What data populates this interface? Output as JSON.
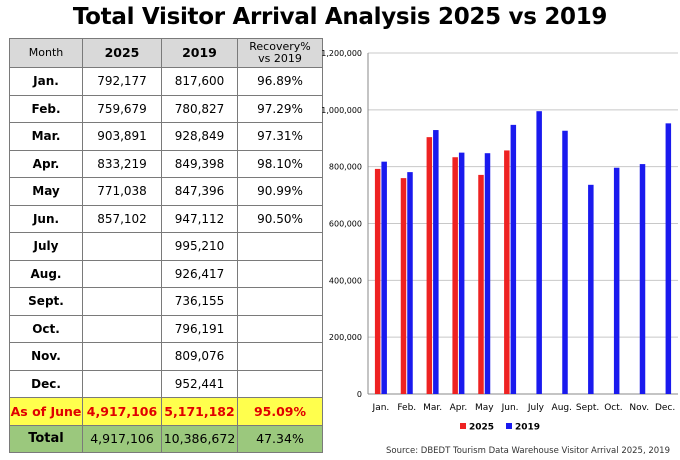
{
  "title": "Total Visitor Arrival Analysis 2025 vs 2019",
  "table": {
    "headers": [
      "Month",
      "2025",
      "2019",
      "Recovery%\nvs 2019"
    ],
    "rows": [
      [
        "Jan.",
        "792,177",
        "817,600",
        "96.89%"
      ],
      [
        "Feb.",
        "759,679",
        "780,827",
        "97.29%"
      ],
      [
        "Mar.",
        "903,891",
        "928,849",
        "97.31%"
      ],
      [
        "Apr.",
        "833,219",
        "849,398",
        "98.10%"
      ],
      [
        "May",
        "771,038",
        "847,396",
        "90.99%"
      ],
      [
        "Jun.",
        "857,102",
        "947,112",
        "90.50%"
      ],
      [
        "July",
        "",
        "995,210",
        ""
      ],
      [
        "Aug.",
        "",
        "926,417",
        ""
      ],
      [
        "Sept.",
        "",
        "736,155",
        ""
      ],
      [
        "Oct.",
        "",
        "796,191",
        ""
      ],
      [
        "Nov.",
        "",
        "809,076",
        ""
      ],
      [
        "Dec.",
        "",
        "952,441",
        ""
      ]
    ],
    "june_row": [
      "As of June",
      "4,917,106",
      "5,171,182",
      "95.09%"
    ],
    "total_row": [
      "Total",
      "4,917,106",
      "10,386,672",
      "47.34%"
    ]
  },
  "chart_data": {
    "type": "bar",
    "categories": [
      "Jan.",
      "Feb.",
      "Mar.",
      "Apr.",
      "May",
      "Jun.",
      "July",
      "Aug.",
      "Sept.",
      "Oct.",
      "Nov.",
      "Dec."
    ],
    "series": [
      {
        "name": "2025",
        "color": "#ee2222",
        "values": [
          792177,
          759679,
          903891,
          833219,
          771038,
          857102,
          null,
          null,
          null,
          null,
          null,
          null
        ]
      },
      {
        "name": "2019",
        "color": "#1a1aee",
        "values": [
          817600,
          780827,
          928849,
          849398,
          847396,
          947112,
          995210,
          926417,
          736155,
          796191,
          809076,
          952441
        ]
      }
    ],
    "ylim": [
      0,
      1200000
    ],
    "yticks": [
      "0",
      "200,000",
      "400,000",
      "600,000",
      "800,000",
      "1,000,000",
      "1,200,000"
    ],
    "grid": true,
    "legend": "bottom"
  },
  "source": "Source: DBEDT Tourism Data Warehouse Visitor Arrival 2025, 2019"
}
